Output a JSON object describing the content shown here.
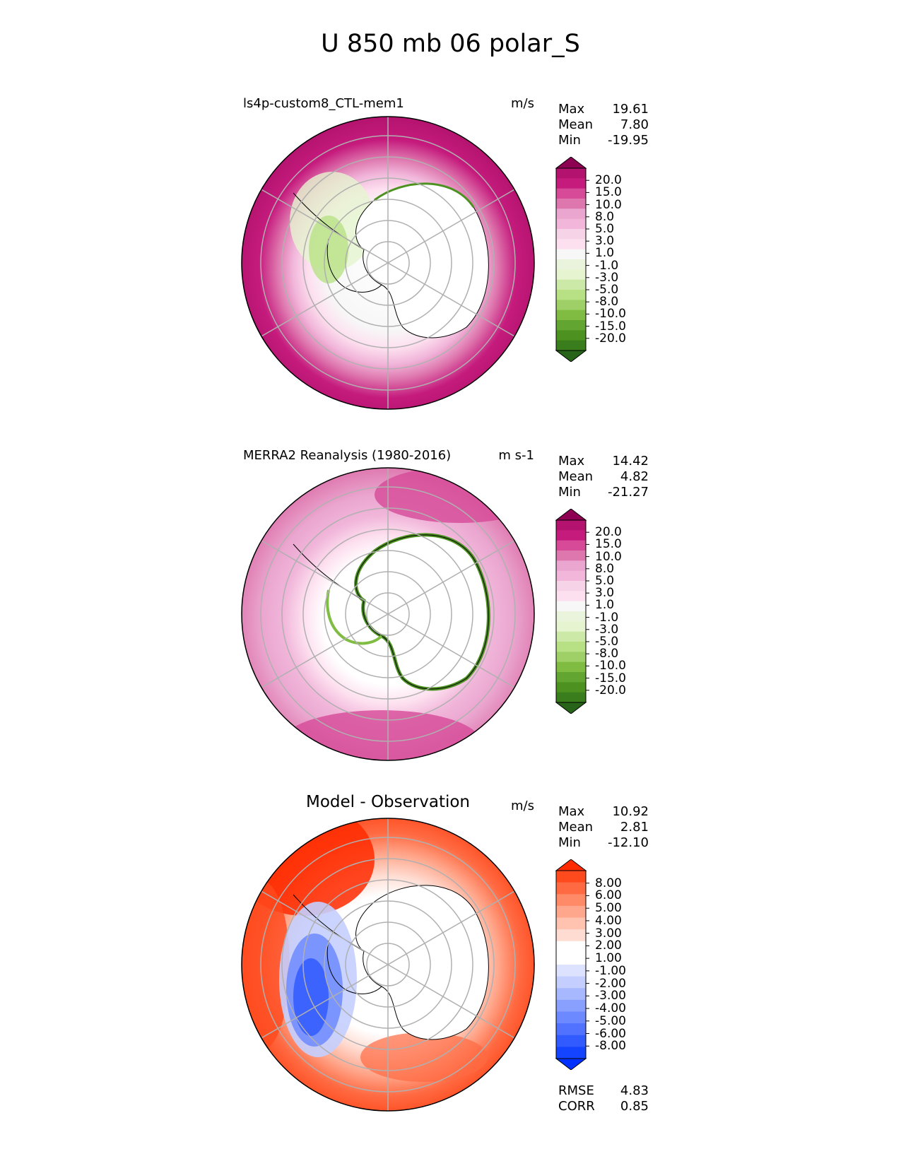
{
  "figure_title": "U 850 mb 06 polar_S",
  "panels": [
    {
      "id": "model",
      "title": "ls4p-custom8_CTL-mem1",
      "units": "m/s",
      "stats": [
        {
          "label": "Max",
          "value": "19.61"
        },
        {
          "label": "Mean",
          "value": "7.80"
        },
        {
          "label": "Min",
          "value": "-19.95"
        }
      ],
      "colorbar": {
        "labels": [
          "20.0",
          "15.0",
          "10.0",
          "8.0",
          "5.0",
          "3.0",
          "1.0",
          "-1.0",
          "-3.0",
          "-5.0",
          "-8.0",
          "-10.0",
          "-15.0",
          "-20.0"
        ],
        "colors": [
          "#8e0152",
          "#b3126e",
          "#c51b7d",
          "#d64a97",
          "#de77ae",
          "#eaa6cf",
          "#f1b6da",
          "#f7d3e8",
          "#fde0ef",
          "#f7f7f7",
          "#eaf3dc",
          "#e6f5d0",
          "#cde9a8",
          "#b8e186",
          "#9fd068",
          "#7fbc41",
          "#62a530",
          "#4d9221",
          "#3a7d1c",
          "#276419"
        ]
      }
    },
    {
      "id": "obs",
      "title": "MERRA2 Reanalysis (1980-2016)",
      "units": "m s-1",
      "stats": [
        {
          "label": "Max",
          "value": "14.42"
        },
        {
          "label": "Mean",
          "value": "4.82"
        },
        {
          "label": "Min",
          "value": "-21.27"
        }
      ],
      "colorbar": {
        "labels": [
          "20.0",
          "15.0",
          "10.0",
          "8.0",
          "5.0",
          "3.0",
          "1.0",
          "-1.0",
          "-3.0",
          "-5.0",
          "-8.0",
          "-10.0",
          "-15.0",
          "-20.0"
        ],
        "colors": [
          "#8e0152",
          "#b3126e",
          "#c51b7d",
          "#d64a97",
          "#de77ae",
          "#eaa6cf",
          "#f1b6da",
          "#f7d3e8",
          "#fde0ef",
          "#f7f7f7",
          "#eaf3dc",
          "#e6f5d0",
          "#cde9a8",
          "#b8e186",
          "#9fd068",
          "#7fbc41",
          "#62a530",
          "#4d9221",
          "#3a7d1c",
          "#276419"
        ]
      }
    },
    {
      "id": "diff",
      "title": "Model - Observation",
      "units": "m/s",
      "stats": [
        {
          "label": "Max",
          "value": "10.92"
        },
        {
          "label": "Mean",
          "value": "2.81"
        },
        {
          "label": "Min",
          "value": "-12.10"
        }
      ],
      "metrics": [
        {
          "label": "RMSE",
          "value": "4.83"
        },
        {
          "label": "CORR",
          "value": "0.85"
        }
      ],
      "colorbar": {
        "labels": [
          "8.00",
          "6.00",
          "5.00",
          "4.00",
          "3.00",
          "2.00",
          "1.00",
          "-1.00",
          "-2.00",
          "-3.00",
          "-4.00",
          "-5.00",
          "-6.00",
          "-8.00"
        ],
        "colors": [
          "#ff2a00",
          "#ff4a1e",
          "#ff6a42",
          "#ff8a68",
          "#ffa78c",
          "#ffc3b0",
          "#ffdcd2",
          "#ffffff",
          "#ffffff",
          "#dde3ff",
          "#c4cfff",
          "#a7b8ff",
          "#8aa0ff",
          "#6d89ff",
          "#5072ff",
          "#325bff",
          "#1444ff",
          "#0030ff"
        ]
      }
    }
  ]
}
